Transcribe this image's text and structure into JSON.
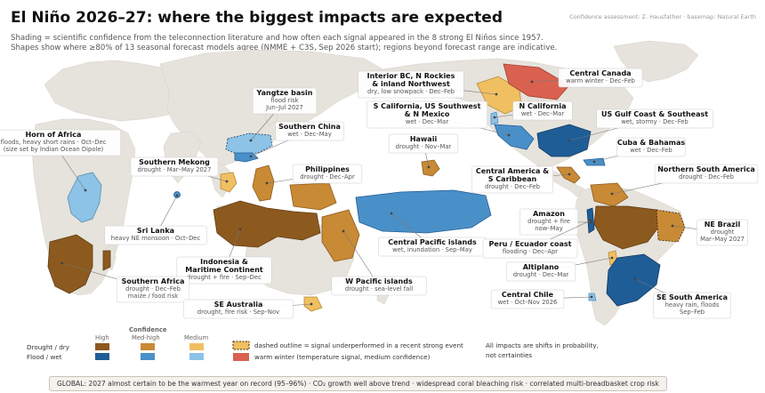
{
  "title": "El Niño 2026–27: where the biggest impacts are expected",
  "credit": "Confidence assessment: Z. Hausfather · basemap: Natural Earth",
  "subtitle_line1": "Shading = scientific confidence from the teleconnection literature and how often each signal appeared in the 8 strong El Niños since 1957.",
  "subtitle_line2": "Shapes show where ≥80% of 13 seasonal forecast models agree (NMME + C3S, Sep 2026 start); regions beyond forecast range are indicative.",
  "colors": {
    "ocean": "#ffffff",
    "land": "#e6e3dc",
    "drought_high": "#8c5a1e",
    "drought_medhigh": "#c98a35",
    "drought_medium": "#f0bf62",
    "flood_high": "#1f5d97",
    "flood_medhigh": "#4a90c8",
    "flood_medium": "#8cc3e6",
    "warm_winter": "#d9614f"
  },
  "regions": [
    {
      "id": "horn-of-africa",
      "title": "Horn of Africa",
      "lines": [
        "floods, heavy short rains · Oct–Dec",
        "(size set by Indian Ocean Dipole)"
      ]
    },
    {
      "id": "southern-mekong",
      "title": "Southern Mekong",
      "lines": [
        "drought · Mar–May 2027"
      ]
    },
    {
      "id": "yangtze-basin",
      "title": "Yangtze basin",
      "lines": [
        "flood risk",
        "Jun–Jul 2027"
      ]
    },
    {
      "id": "southern-china",
      "title": "Southern China",
      "lines": [
        "wet · Dec–May"
      ]
    },
    {
      "id": "philippines",
      "title": "Philippines",
      "lines": [
        "drought · Dec–Apr"
      ]
    },
    {
      "id": "sri-lanka",
      "title": "Sri Lanka",
      "lines": [
        "heavy NE monsoon · Oct–Dec"
      ]
    },
    {
      "id": "indonesia",
      "title": "Indonesia &",
      "title2": "Maritime Continent",
      "lines": [
        "drought + fire · Sep–Dec"
      ]
    },
    {
      "id": "southern-africa",
      "title": "Southern Africa",
      "lines": [
        "drought · Dec–Feb",
        "maize / food risk"
      ]
    },
    {
      "id": "se-australia",
      "title": "SE Australia",
      "lines": [
        "drought, fire risk · Sep–Nov"
      ]
    },
    {
      "id": "w-pacific-islands",
      "title": "W Pacific islands",
      "lines": [
        "drought · sea-level fall"
      ]
    },
    {
      "id": "central-pacific-islands",
      "title": "Central Pacific islands",
      "lines": [
        "wet, inundation · Sep–May"
      ]
    },
    {
      "id": "hawaii",
      "title": "Hawaii",
      "lines": [
        "drought · Nov–Mar"
      ]
    },
    {
      "id": "interior-bc",
      "title": "Interior BC, N Rockies",
      "title2": "& inland Northwest",
      "lines": [
        "dry, low snowpack · Dec–Feb"
      ]
    },
    {
      "id": "s-california",
      "title": "S California, US Southwest",
      "title2": "& N Mexico",
      "lines": [
        "wet · Dec–Mar"
      ]
    },
    {
      "id": "n-california",
      "title": "N California",
      "lines": [
        "wet · Dec–Mar"
      ]
    },
    {
      "id": "central-canada",
      "title": "Central Canada",
      "lines": [
        "warm winter · Dec–Feb"
      ]
    },
    {
      "id": "us-gulf-coast",
      "title": "US Gulf Coast & Southeast",
      "lines": [
        "wet, stormy · Dec–Feb"
      ]
    },
    {
      "id": "cuba-bahamas",
      "title": "Cuba & Bahamas",
      "lines": [
        "wet · Dec–Feb"
      ]
    },
    {
      "id": "central-america",
      "title": "Central America &",
      "title2": "S Caribbean",
      "lines": [
        "drought · Dec–Feb"
      ]
    },
    {
      "id": "northern-south-america",
      "title": "Northern South America",
      "lines": [
        "drought · Dec–Feb"
      ]
    },
    {
      "id": "amazon",
      "title": "Amazon",
      "lines": [
        "drought + fire",
        "now–May"
      ]
    },
    {
      "id": "ne-brazil",
      "title": "NE Brazil",
      "lines": [
        "drought",
        "Mar–May 2027"
      ]
    },
    {
      "id": "peru-ecuador",
      "title": "Peru / Ecuador coast",
      "lines": [
        "flooding · Dec–Apr"
      ]
    },
    {
      "id": "altiplano",
      "title": "Altiplano",
      "lines": [
        "drought · Dec–Mar"
      ]
    },
    {
      "id": "central-chile",
      "title": "Central Chile",
      "lines": [
        "wet · Oct–Nov 2026"
      ]
    },
    {
      "id": "se-south-america",
      "title": "SE South America",
      "lines": [
        "heavy rain, floods",
        "Sep–Feb"
      ]
    }
  ],
  "legend": {
    "confidence_label": "Confidence",
    "levels": [
      "High",
      "Med-high",
      "Medium"
    ],
    "row_drought": "Drought / dry",
    "row_flood": "Flood / wet",
    "dashed_note": "dashed outline = signal underperformed in a recent strong event",
    "warm_note": "warm winter (temperature signal, medium confidence)",
    "caveat_line1": "All impacts are shifts in probability,",
    "caveat_line2": "not certainties"
  },
  "footer": "GLOBAL:  2027 almost certain to be the warmest year on record (95–96%)  ·  CO₂ growth well above trend  ·  widespread coral bleaching risk  ·  correlated multi-breadbasket crop risk"
}
